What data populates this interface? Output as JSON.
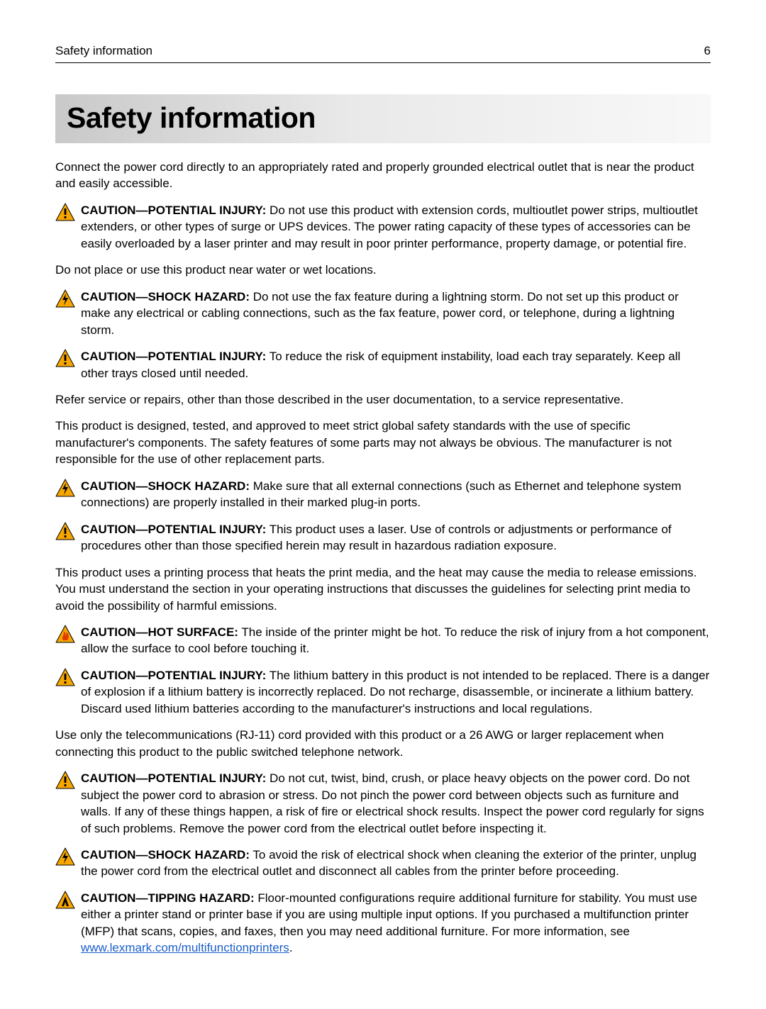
{
  "header": {
    "running_title": "Safety information",
    "page_number": "6"
  },
  "title": "Safety information",
  "icons": {
    "triangle_fill": "#f7a600",
    "triangle_stroke": "#000000",
    "exclaim_dark": "#000000",
    "bolt_color": "#000000",
    "hot_color": "#e03c00",
    "tip_fill": "#f7a600",
    "tip_inner": "#000000"
  },
  "link": {
    "text": "www.lexmark.com/multifunctionprinters",
    "href": "http://www.lexmark.com/multifunctionprinters"
  },
  "blocks": [
    {
      "kind": "para",
      "text": "Connect the power cord directly to an appropriately rated and properly grounded electrical outlet that is near the product and easily accessible."
    },
    {
      "kind": "caution",
      "icon": "injury",
      "label": "CAUTION—POTENTIAL INJURY:",
      "text": " Do not use this product with extension cords, multioutlet power strips, multioutlet extenders, or other types of surge or UPS devices. The power rating capacity of these types of accessories can be easily overloaded by a laser printer and may result in poor printer performance, property damage, or potential fire."
    },
    {
      "kind": "para",
      "text": "Do not place or use this product near water or wet locations."
    },
    {
      "kind": "caution",
      "icon": "shock",
      "label": "CAUTION—SHOCK HAZARD:",
      "text": " Do not use the fax feature during a lightning storm. Do not set up this product or make any electrical or cabling connections, such as the fax feature, power cord, or telephone, during a lightning storm."
    },
    {
      "kind": "caution",
      "icon": "injury",
      "label": "CAUTION—POTENTIAL INJURY:",
      "text": " To reduce the risk of equipment instability, load each tray separately. Keep all other trays closed until needed."
    },
    {
      "kind": "para",
      "text": "Refer service or repairs, other than those described in the user documentation, to a service representative."
    },
    {
      "kind": "para",
      "text": "This product is designed, tested, and approved to meet strict global safety standards with the use of specific manufacturer's components. The safety features of some parts may not always be obvious. The manufacturer is not responsible for the use of other replacement parts."
    },
    {
      "kind": "caution",
      "icon": "shock",
      "label": "CAUTION—SHOCK HAZARD:",
      "text": " Make sure that all external connections (such as Ethernet and telephone system connections) are properly installed in their marked plug-in ports."
    },
    {
      "kind": "caution",
      "icon": "injury",
      "label": "CAUTION—POTENTIAL INJURY:",
      "text": " This product uses a laser. Use of controls or adjustments or performance of procedures other than those specified herein may result in hazardous radiation exposure."
    },
    {
      "kind": "para",
      "text": "This product uses a printing process that heats the print media, and the heat may cause the media to release emissions. You must understand the section in your operating instructions that discusses the guidelines for selecting print media to avoid the possibility of harmful emissions."
    },
    {
      "kind": "caution",
      "icon": "hot",
      "label": "CAUTION—HOT SURFACE:",
      "text": " The inside of the printer might be hot. To reduce the risk of injury from a hot component, allow the surface to cool before touching it."
    },
    {
      "kind": "caution",
      "icon": "injury",
      "label": "CAUTION—POTENTIAL INJURY:",
      "text": "  The lithium battery in this product is not intended to be replaced. There is a danger of explosion if a lithium battery is incorrectly replaced. Do not recharge, disassemble, or incinerate a lithium battery. Discard used lithium batteries according to the manufacturer's instructions and local regulations."
    },
    {
      "kind": "para",
      "text": "Use only the telecommunications (RJ-11) cord provided with this product or a 26 AWG or larger replacement when connecting this product to the public switched telephone network."
    },
    {
      "kind": "caution",
      "icon": "injury",
      "label": "CAUTION—POTENTIAL INJURY:",
      "text": "  Do not cut, twist, bind, crush, or place heavy objects on the power cord. Do not subject the power cord to abrasion or stress. Do not pinch the power cord between objects such as furniture and walls. If any of these things happen, a risk of fire or electrical shock results. Inspect the power cord regularly for signs of such problems. Remove the power cord from the electrical outlet before inspecting it."
    },
    {
      "kind": "caution",
      "icon": "shock",
      "label": "CAUTION—SHOCK HAZARD:",
      "text": " To avoid the risk of electrical shock when cleaning the exterior of the printer, unplug the power cord from the electrical outlet and disconnect all cables from the printer before proceeding."
    },
    {
      "kind": "caution",
      "icon": "tip",
      "label": "CAUTION—TIPPING HAZARD:",
      "text_before_link": " Floor-mounted configurations require additional furniture for stability. You must use either a printer stand or printer base if you are using multiple input options. If you purchased a multifunction printer (MFP) that scans, copies, and faxes, then you may need additional furniture. For more information, see ",
      "has_link": true,
      "text_after_link": "."
    }
  ]
}
